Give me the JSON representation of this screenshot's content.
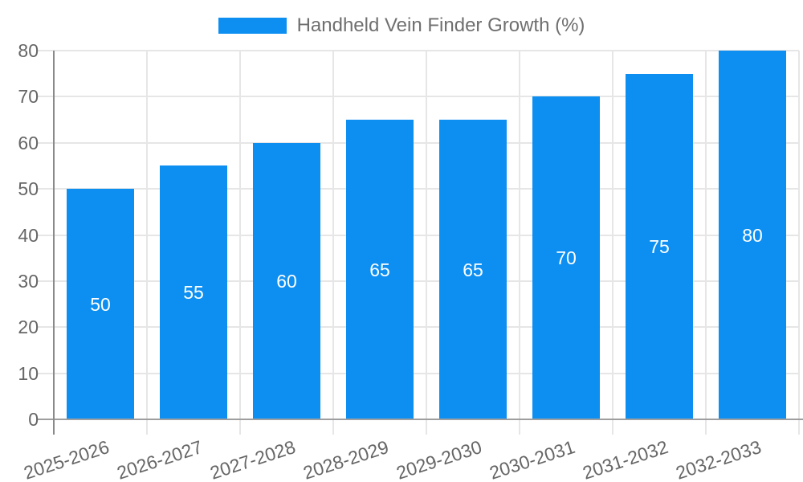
{
  "legend": {
    "swatch_icon": "series-color-swatch",
    "label": "Handheld Vein Finder Growth (%)"
  },
  "chart_data": {
    "type": "bar",
    "title": "Handheld Vein Finder Growth (%)",
    "categories": [
      "2025-2026",
      "2026-2027",
      "2027-2028",
      "2028-2029",
      "2029-2030",
      "2030-2031",
      "2031-2032",
      "2032-2033"
    ],
    "values": [
      50,
      55,
      60,
      65,
      65,
      70,
      75,
      80
    ],
    "value_labels": [
      "50",
      "55",
      "60",
      "65",
      "65",
      "70",
      "75",
      "80"
    ],
    "xlabel": "",
    "ylabel": "",
    "ylim": [
      0,
      80
    ],
    "yticks": [
      0,
      10,
      20,
      30,
      40,
      50,
      60,
      70,
      80
    ],
    "grid": true,
    "legend_position": "top",
    "x_label_rotation_deg": -18
  },
  "colors": {
    "bar": "#0d8ff2",
    "grid": "#e6e6e6",
    "x_axis": "#9e9e9e",
    "y_axis": "#8a8a8a",
    "tick_label": "#666666",
    "legend_label": "#6f6f6f",
    "value_label": "#ffffff",
    "background": "#ffffff"
  }
}
